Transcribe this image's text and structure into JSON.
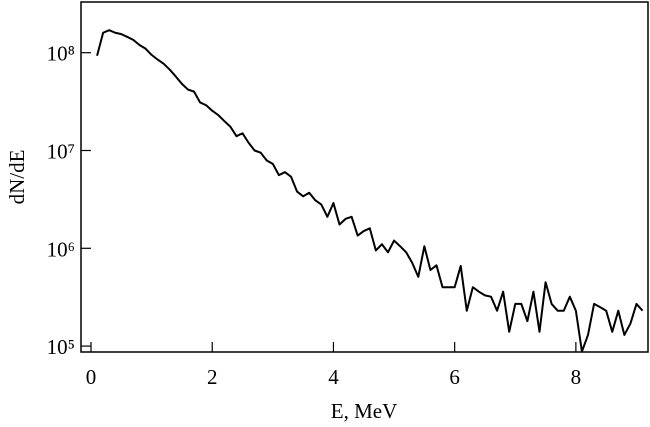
{
  "chart_data": {
    "type": "line",
    "x_label": "E, MeV",
    "y_label": "dN/dE",
    "log_y": true,
    "grid": false,
    "xlim": [
      -0.165,
      9.19
    ],
    "xticks": [
      0,
      2,
      4,
      6,
      8
    ],
    "ylim": [
      87000,
      330000000
    ],
    "yticks": [
      {
        "value": 100000,
        "label": "10⁵"
      },
      {
        "value": 1000000,
        "label": "10⁶"
      },
      {
        "value": 10000000,
        "label": "10⁷"
      },
      {
        "value": 100000000,
        "label": "10⁸"
      }
    ],
    "x": [
      0.1,
      0.2,
      0.3,
      0.4,
      0.5,
      0.6,
      0.7,
      0.8,
      0.9,
      1.0,
      1.1,
      1.2,
      1.3,
      1.4,
      1.5,
      1.6,
      1.7,
      1.8,
      1.9,
      2.0,
      2.1,
      2.2,
      2.3,
      2.4,
      2.5,
      2.6,
      2.7,
      2.8,
      2.9,
      3.0,
      3.1,
      3.2,
      3.3,
      3.4,
      3.5,
      3.6,
      3.7,
      3.8,
      3.9,
      4.0,
      4.1,
      4.2,
      4.3,
      4.4,
      4.5,
      4.6,
      4.7,
      4.8,
      4.9,
      5.0,
      5.1,
      5.2,
      5.3,
      5.4,
      5.5,
      5.6,
      5.7,
      5.8,
      5.9,
      6.0,
      6.1,
      6.2,
      6.3,
      6.4,
      6.5,
      6.6,
      6.7,
      6.8,
      6.9,
      7.0,
      7.1,
      7.2,
      7.3,
      7.4,
      7.5,
      7.6,
      7.7,
      7.8,
      7.9,
      8.0,
      8.1,
      8.2,
      8.3,
      8.4,
      8.5,
      8.6,
      8.7,
      8.8,
      8.9,
      9.0,
      9.1
    ],
    "series": [
      {
        "color": "#000000",
        "values": [
          93000000,
          160000000,
          170000000,
          160000000,
          155000000,
          145000000,
          135000000,
          120000000,
          110000000,
          95000000,
          85000000,
          77000000,
          67000000,
          57000000,
          48000000,
          42000000,
          40000000,
          31000000,
          29000000,
          25500000,
          23000000,
          20000000,
          17500000,
          14000000,
          15000000,
          12000000,
          10000000,
          9500000,
          7900000,
          7300000,
          5600000,
          6000000,
          5400000,
          3800000,
          3400000,
          3700000,
          3100000,
          2800000,
          2100000,
          2900000,
          1750000,
          2000000,
          2100000,
          1350000,
          1500000,
          1600000,
          950000,
          1100000,
          910000,
          1200000,
          1050000,
          910000,
          710000,
          510000,
          1050000,
          600000,
          670000,
          400000,
          400000,
          400000,
          660000,
          230000,
          400000,
          360000,
          330000,
          320000,
          230000,
          360000,
          140000,
          270000,
          270000,
          180000,
          360000,
          140000,
          450000,
          270000,
          230000,
          230000,
          320000,
          230000,
          88000,
          130000,
          270000,
          250000,
          230000,
          140000,
          230000,
          130000,
          170000,
          270000,
          230000
        ]
      }
    ]
  }
}
